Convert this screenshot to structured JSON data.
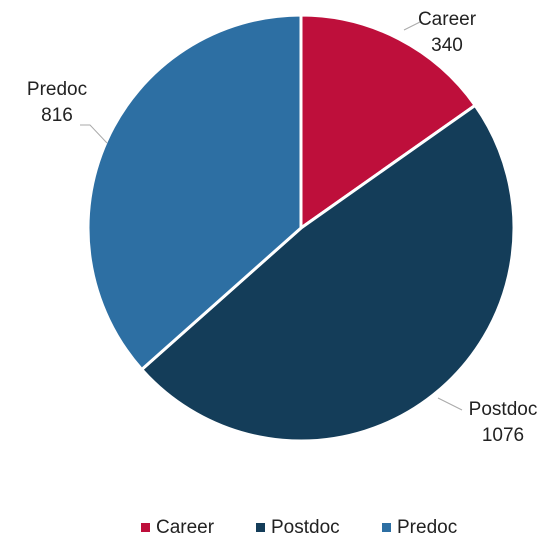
{
  "chart_data": {
    "type": "pie",
    "categories": [
      "Career",
      "Postdoc",
      "Predoc"
    ],
    "values": [
      340,
      1076,
      816
    ],
    "colors": [
      "#be0f3b",
      "#143d59",
      "#2d6fa3"
    ],
    "legend": "bottom"
  }
}
